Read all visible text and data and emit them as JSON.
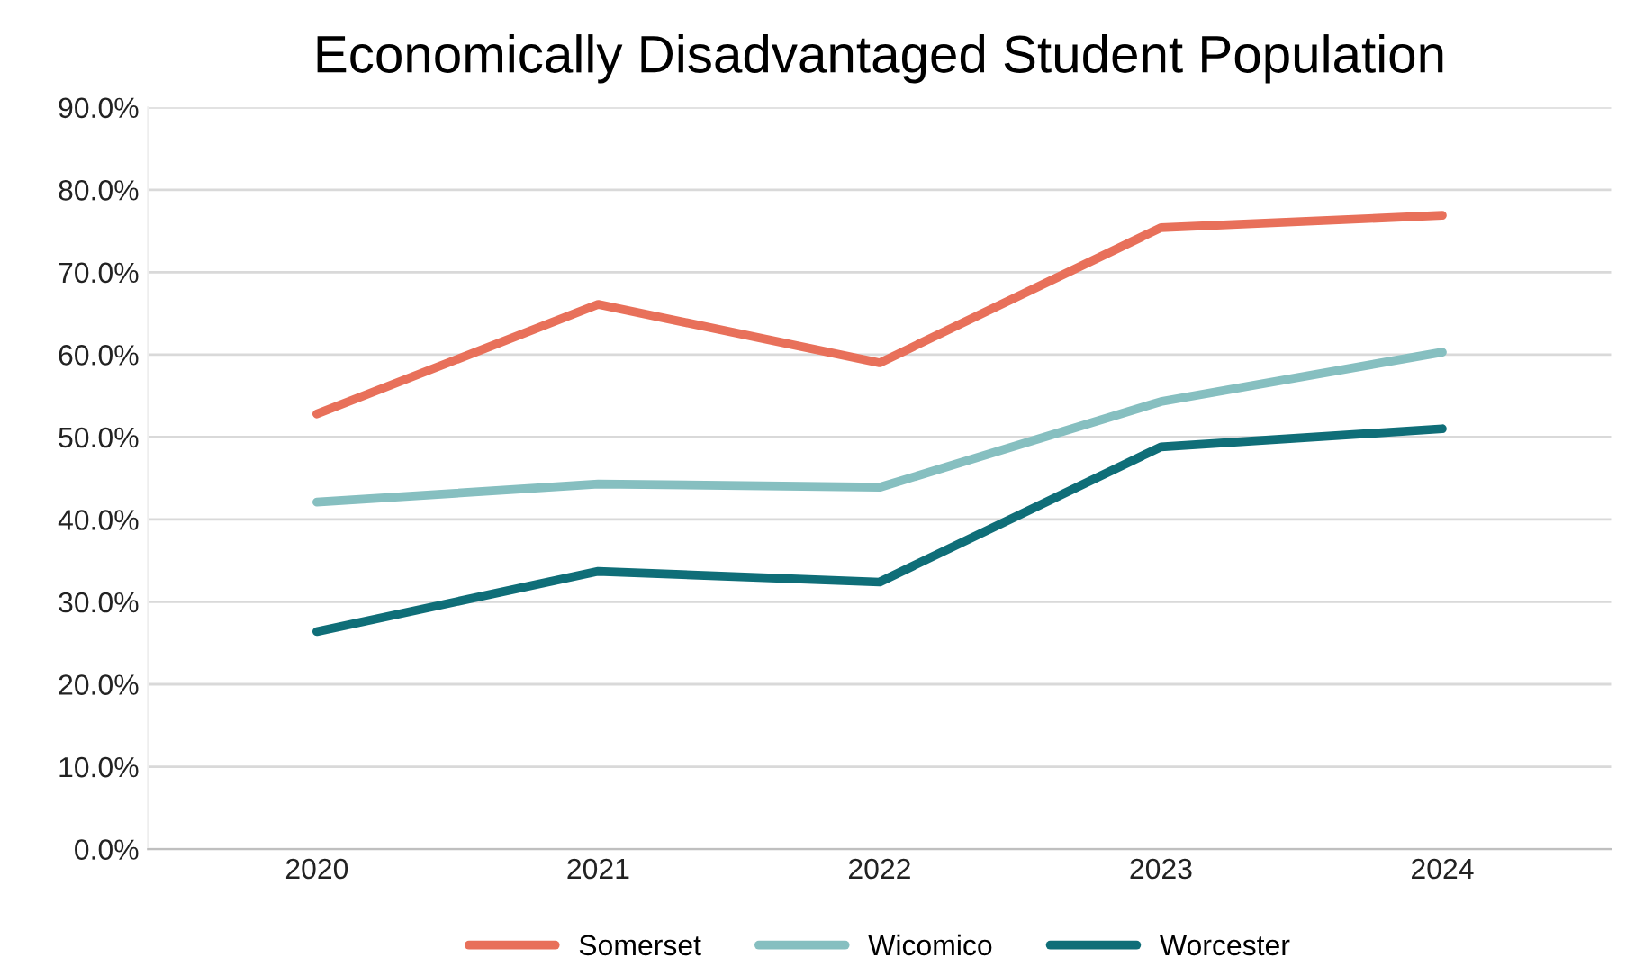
{
  "chart_data": {
    "type": "line",
    "title": "Economically Disadvantaged Student Population",
    "categories": [
      "2020",
      "2021",
      "2022",
      "2023",
      "2024"
    ],
    "series": [
      {
        "name": "Somerset",
        "color": "#e8705a",
        "values": [
          52.8,
          66.1,
          59.0,
          75.4,
          76.9
        ]
      },
      {
        "name": "Wicomico",
        "color": "#86bfc0",
        "values": [
          42.1,
          44.3,
          43.9,
          54.3,
          60.3
        ]
      },
      {
        "name": "Worcester",
        "color": "#0f6e78",
        "values": [
          26.4,
          33.7,
          32.4,
          48.8,
          51.0
        ]
      }
    ],
    "ylim": [
      0,
      90
    ],
    "yticks": [
      {
        "value": 0,
        "label": "0.0%"
      },
      {
        "value": 10,
        "label": "10.0%"
      },
      {
        "value": 20,
        "label": "20.0%"
      },
      {
        "value": 30,
        "label": "30.0%"
      },
      {
        "value": 40,
        "label": "40.0%"
      },
      {
        "value": 50,
        "label": "50.0%"
      },
      {
        "value": 60,
        "label": "60.0%"
      },
      {
        "value": 70,
        "label": "70.0%"
      },
      {
        "value": 80,
        "label": "80.0%"
      },
      {
        "value": 90,
        "label": "90.0%"
      }
    ],
    "grid": "y",
    "legend": "bottom",
    "marker": "none",
    "line_style": "solid"
  }
}
